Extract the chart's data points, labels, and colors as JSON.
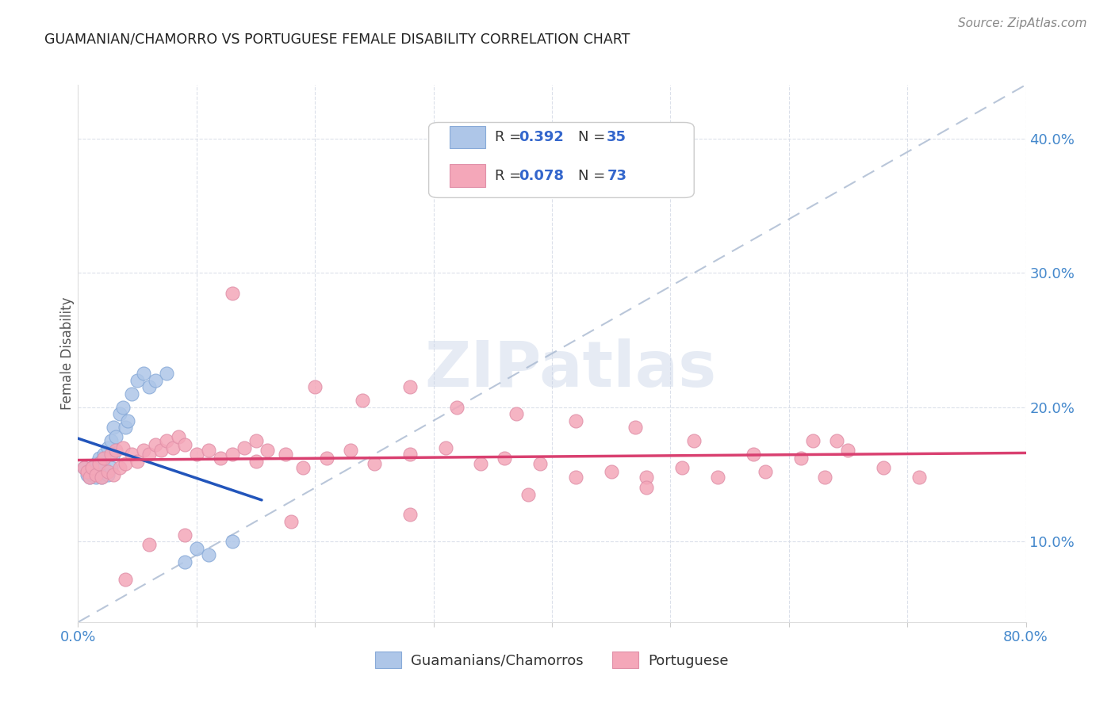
{
  "title": "GUAMANIAN/CHAMORRO VS PORTUGUESE FEMALE DISABILITY CORRELATION CHART",
  "source": "Source: ZipAtlas.com",
  "ylabel": "Female Disability",
  "R1": 0.392,
  "N1": 35,
  "R2": 0.078,
  "N2": 73,
  "color1": "#aec6e8",
  "color2": "#f4a7b9",
  "line1_color": "#2255bb",
  "line2_color": "#d94070",
  "diagonal_color": "#a8b8d0",
  "watermark_color": "#c8d4e8",
  "legend_label1": "Guamanians/Chamorros",
  "legend_label2": "Portuguese",
  "xlim": [
    0.0,
    0.8
  ],
  "ylim": [
    0.04,
    0.44
  ],
  "guam_x": [
    0.005,
    0.008,
    0.01,
    0.01,
    0.012,
    0.012,
    0.015,
    0.015,
    0.018,
    0.018,
    0.02,
    0.02,
    0.022,
    0.022,
    0.025,
    0.025,
    0.028,
    0.028,
    0.03,
    0.03,
    0.032,
    0.035,
    0.038,
    0.04,
    0.042,
    0.045,
    0.05,
    0.055,
    0.06,
    0.065,
    0.075,
    0.09,
    0.1,
    0.11,
    0.13
  ],
  "guam_y": [
    0.155,
    0.15,
    0.148,
    0.152,
    0.15,
    0.155,
    0.148,
    0.158,
    0.152,
    0.162,
    0.148,
    0.16,
    0.155,
    0.165,
    0.15,
    0.17,
    0.155,
    0.175,
    0.165,
    0.185,
    0.178,
    0.195,
    0.2,
    0.185,
    0.19,
    0.21,
    0.22,
    0.225,
    0.215,
    0.22,
    0.225,
    0.085,
    0.095,
    0.09,
    0.1
  ],
  "port_x": [
    0.005,
    0.008,
    0.01,
    0.012,
    0.015,
    0.018,
    0.02,
    0.022,
    0.025,
    0.028,
    0.03,
    0.032,
    0.035,
    0.038,
    0.04,
    0.045,
    0.05,
    0.055,
    0.06,
    0.065,
    0.07,
    0.075,
    0.08,
    0.085,
    0.09,
    0.1,
    0.11,
    0.12,
    0.13,
    0.14,
    0.15,
    0.16,
    0.175,
    0.19,
    0.21,
    0.23,
    0.25,
    0.28,
    0.31,
    0.34,
    0.36,
    0.39,
    0.42,
    0.45,
    0.48,
    0.51,
    0.54,
    0.58,
    0.61,
    0.64,
    0.13,
    0.15,
    0.2,
    0.24,
    0.28,
    0.32,
    0.37,
    0.42,
    0.47,
    0.52,
    0.57,
    0.62,
    0.65,
    0.68,
    0.71,
    0.63,
    0.48,
    0.38,
    0.28,
    0.18,
    0.09,
    0.06,
    0.04
  ],
  "port_y": [
    0.155,
    0.152,
    0.148,
    0.155,
    0.15,
    0.158,
    0.148,
    0.162,
    0.152,
    0.165,
    0.15,
    0.168,
    0.155,
    0.17,
    0.158,
    0.165,
    0.16,
    0.168,
    0.165,
    0.172,
    0.168,
    0.175,
    0.17,
    0.178,
    0.172,
    0.165,
    0.168,
    0.162,
    0.165,
    0.17,
    0.16,
    0.168,
    0.165,
    0.155,
    0.162,
    0.168,
    0.158,
    0.165,
    0.17,
    0.158,
    0.162,
    0.158,
    0.148,
    0.152,
    0.148,
    0.155,
    0.148,
    0.152,
    0.162,
    0.175,
    0.285,
    0.175,
    0.215,
    0.205,
    0.215,
    0.2,
    0.195,
    0.19,
    0.185,
    0.175,
    0.165,
    0.175,
    0.168,
    0.155,
    0.148,
    0.148,
    0.14,
    0.135,
    0.12,
    0.115,
    0.105,
    0.098,
    0.072
  ]
}
